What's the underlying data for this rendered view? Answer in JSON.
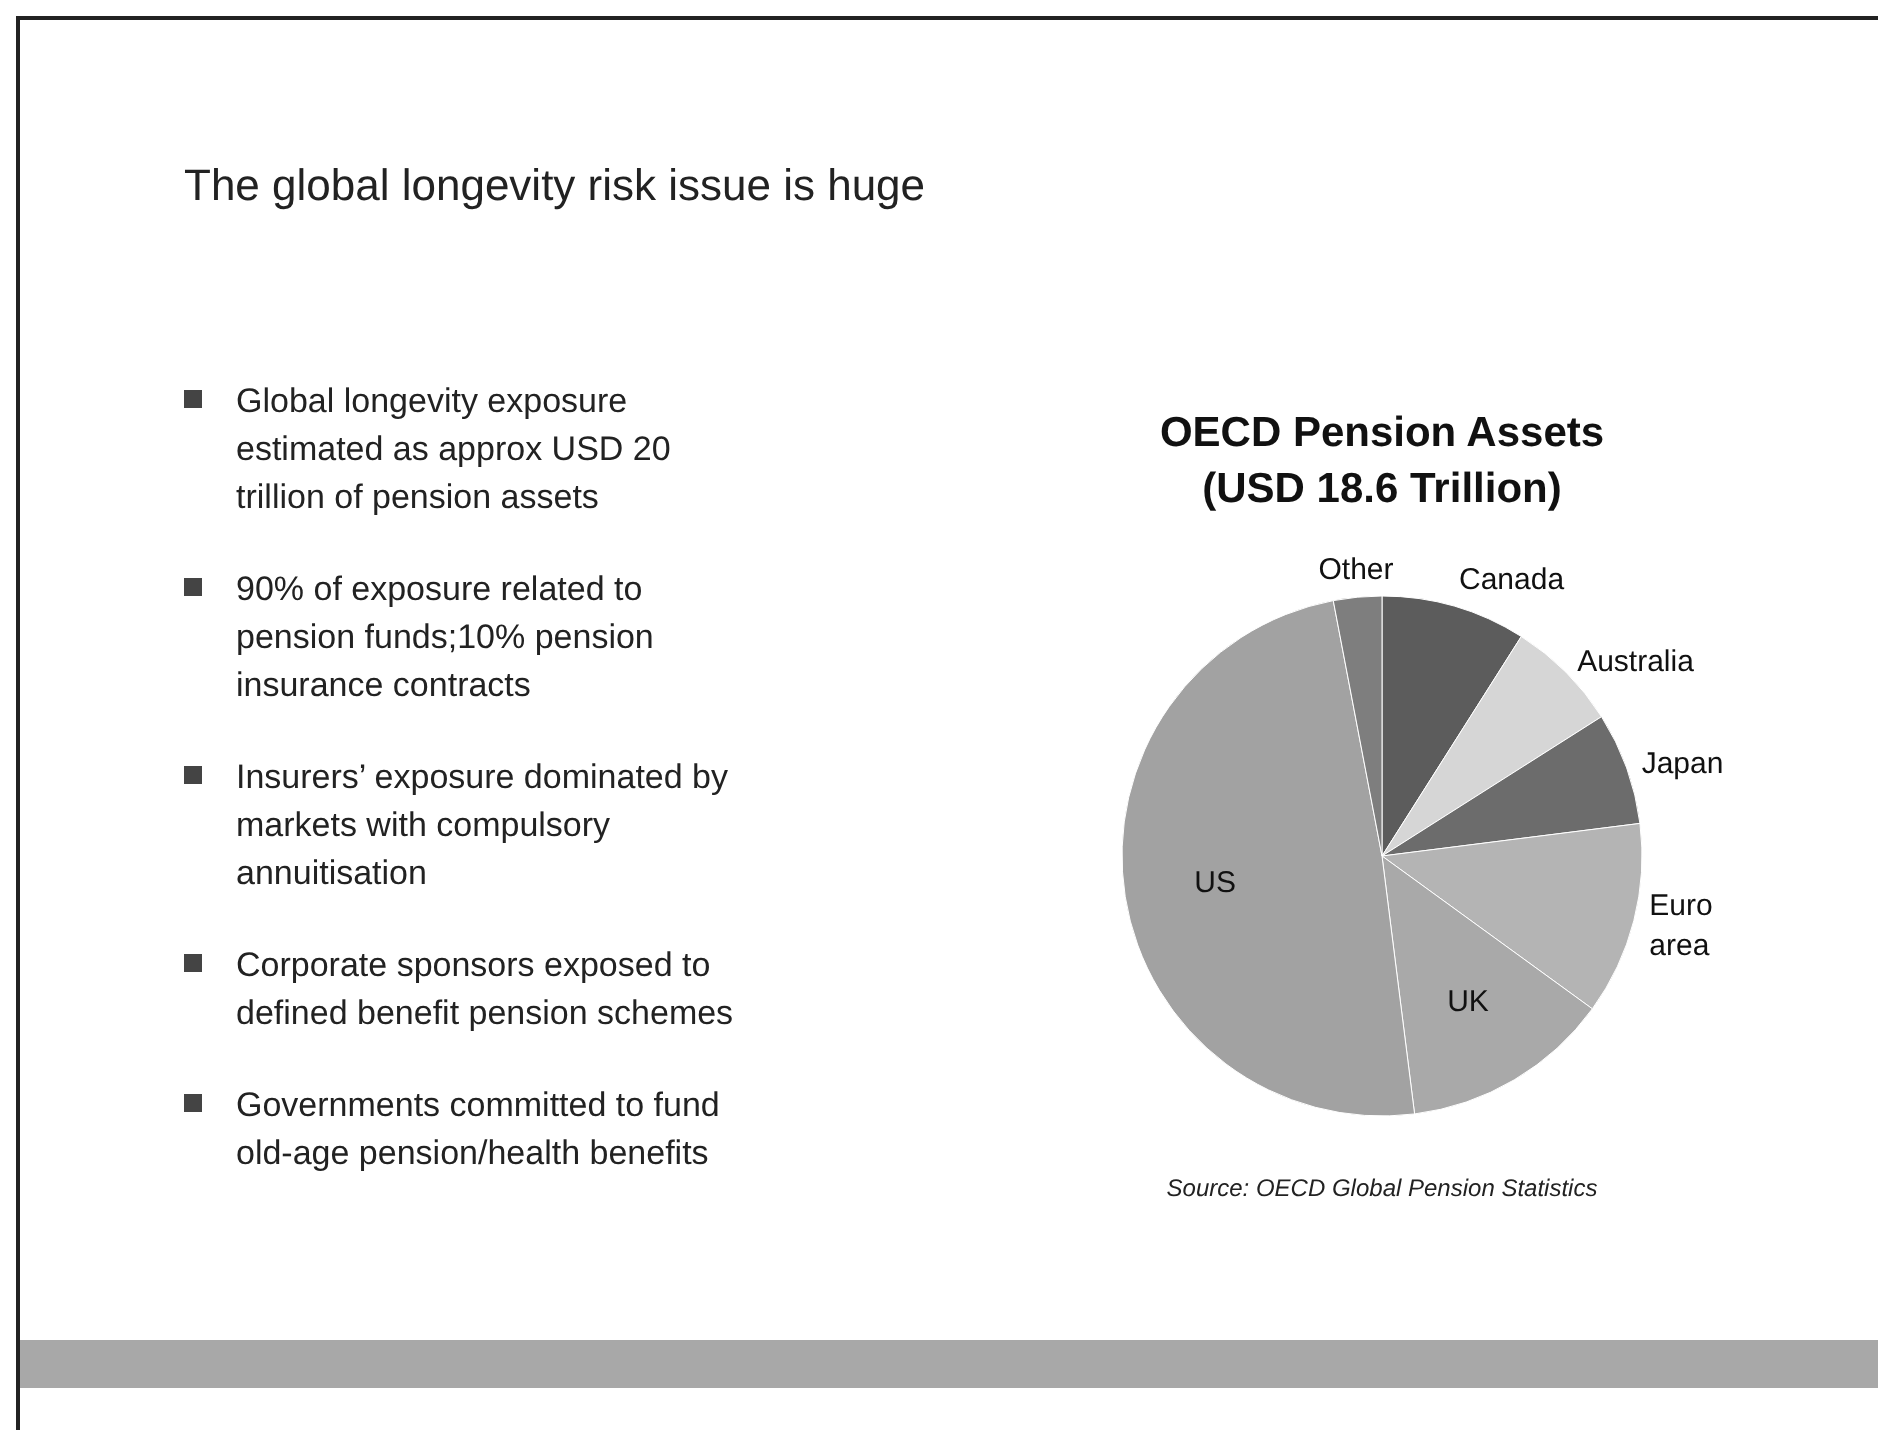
{
  "chart_data": {
    "type": "pie",
    "title": "The global longevity risk issue is huge",
    "subtitle": "OECD Pension Assets (USD 18.6 Trillion)",
    "categories": [
      "Canada",
      "Australia",
      "Japan",
      "Euro area",
      "UK",
      "US",
      "Other"
    ],
    "values": [
      9,
      7,
      7,
      12,
      13,
      49,
      3
    ],
    "colors": [
      "#5c5c5c",
      "#d6d6d6",
      "#6c6c6c",
      "#b4b4b4",
      "#a9a9a9",
      "#a2a2a2",
      "#7e7e7e"
    ],
    "annotations": [
      "Global longevity exposure estimated as approx USD 20 trillion of pension assets",
      "90% of exposure related to pension funds;10% pension insurance contracts",
      "Insurers’ exposure dominated by markets with compulsory annuitisation",
      "Corporate sponsors exposed to defined benefit pension schemes",
      "Governments committed to fund old-age pension/health benefits",
      "Source: OECD Global Pension Statistics"
    ]
  }
}
